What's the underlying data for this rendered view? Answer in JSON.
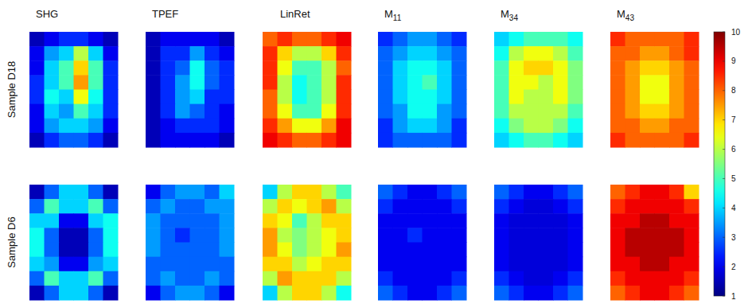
{
  "chart_data": {
    "type": "heatmap",
    "columns": [
      "SHG",
      "TPEF",
      "LinRet",
      "M11",
      "M34",
      "M43"
    ],
    "rows": [
      "Sample D18",
      "Sample D6"
    ],
    "colorbar": {
      "lim": [
        1,
        10
      ],
      "ticks": [
        1,
        2,
        3,
        4,
        5,
        6,
        7,
        8,
        9,
        10
      ]
    },
    "panels": [
      [
        [
          [
            1.5,
            2,
            2.5,
            2.5,
            2,
            1.5
          ],
          [
            2,
            3.5,
            4,
            6,
            4,
            2
          ],
          [
            2,
            4,
            5,
            7,
            5,
            2.5
          ],
          [
            2.5,
            4,
            5,
            7.5,
            5,
            2.5
          ],
          [
            2.5,
            4.5,
            4,
            6.5,
            4.5,
            2.5
          ],
          [
            2,
            4,
            3.5,
            5,
            4,
            2.5
          ],
          [
            2,
            3.5,
            4,
            4,
            3.5,
            2
          ],
          [
            1.5,
            2.5,
            3,
            3,
            2.5,
            1.5
          ]
        ],
        [
          [
            1.5,
            2,
            2,
            2,
            2,
            1.5
          ],
          [
            1.5,
            2.5,
            2.5,
            3.5,
            2.5,
            2
          ],
          [
            1.5,
            2.5,
            3,
            4.5,
            3,
            2.5
          ],
          [
            1.5,
            2.5,
            3.5,
            4.5,
            3,
            2.5
          ],
          [
            1.5,
            2.5,
            3.5,
            4,
            2.5,
            2.5
          ],
          [
            1.5,
            2.5,
            3.5,
            3,
            2.5,
            2
          ],
          [
            1.5,
            2,
            2.5,
            2.5,
            2.5,
            2
          ],
          [
            1.5,
            2,
            2,
            2,
            2,
            1.5
          ]
        ],
        [
          [
            8,
            8.5,
            8,
            8,
            8.5,
            9
          ],
          [
            8.5,
            7,
            6,
            6,
            7,
            8.5
          ],
          [
            8.5,
            6.5,
            5,
            5,
            6,
            8
          ],
          [
            8.5,
            6,
            4.5,
            5,
            6,
            8.5
          ],
          [
            8,
            6,
            4.5,
            5,
            6,
            8.5
          ],
          [
            8,
            6.5,
            5,
            5,
            6.5,
            8.5
          ],
          [
            8.5,
            7.5,
            6.5,
            6.5,
            7.5,
            9
          ],
          [
            9,
            8.5,
            8,
            8,
            8.5,
            9
          ]
        ],
        [
          [
            2.5,
            3,
            3.5,
            3.5,
            3,
            2.5
          ],
          [
            3,
            3.5,
            4,
            4,
            3.5,
            3
          ],
          [
            3,
            4,
            4.5,
            4.5,
            4,
            3
          ],
          [
            3,
            4,
            4.5,
            5,
            4,
            3
          ],
          [
            3,
            4,
            4.5,
            4.5,
            4,
            3
          ],
          [
            3,
            3.5,
            4.5,
            4.5,
            3.5,
            3
          ],
          [
            2.5,
            3.5,
            4,
            4,
            3.5,
            2.5
          ],
          [
            2.5,
            3,
            3,
            3,
            3,
            2.5
          ]
        ],
        [
          [
            4,
            4.5,
            5,
            5,
            5,
            4.5
          ],
          [
            4.5,
            6,
            6.5,
            6.5,
            6,
            5
          ],
          [
            5,
            6.5,
            7,
            7,
            6.5,
            5.5
          ],
          [
            5,
            6.5,
            6.5,
            6,
            6.5,
            5.5
          ],
          [
            5,
            6.5,
            6,
            6,
            6.5,
            5.5
          ],
          [
            5,
            6,
            6,
            6,
            6,
            5
          ],
          [
            4.5,
            5.5,
            6,
            6,
            5.5,
            4.5
          ],
          [
            4,
            4.5,
            5,
            5,
            4.5,
            4
          ]
        ],
        [
          [
            8.5,
            8,
            8,
            8,
            8,
            8.5
          ],
          [
            8,
            8,
            7.5,
            7.5,
            8,
            8.5
          ],
          [
            8,
            7.5,
            7,
            7,
            7.5,
            8
          ],
          [
            8,
            7.5,
            6.5,
            6.5,
            7.5,
            8
          ],
          [
            8,
            7.5,
            6.5,
            6.5,
            7.5,
            8
          ],
          [
            8,
            7.5,
            7,
            7,
            7.5,
            8
          ],
          [
            8,
            8,
            7.5,
            7.5,
            8,
            8
          ],
          [
            8.5,
            8,
            8,
            8,
            8,
            8.5
          ]
        ]
      ],
      [
        [
          [
            1.5,
            3,
            4,
            4,
            3,
            1.5
          ],
          [
            3,
            5,
            4,
            4,
            5,
            3
          ],
          [
            4,
            4,
            2,
            2,
            4,
            4.5
          ],
          [
            4.5,
            3,
            1.5,
            1.5,
            3,
            4.5
          ],
          [
            4.5,
            3,
            1.5,
            1.5,
            3,
            4.5
          ],
          [
            4,
            3.5,
            2,
            2,
            3.5,
            4
          ],
          [
            3,
            5,
            4,
            4,
            5,
            3
          ],
          [
            1.5,
            3,
            4,
            4,
            3,
            1.5
          ]
        ],
        [
          [
            2,
            3,
            3.5,
            3.5,
            3,
            4
          ],
          [
            3,
            3.5,
            3,
            3,
            3.5,
            3.5
          ],
          [
            3.5,
            3,
            3,
            3,
            3,
            3.5
          ],
          [
            3.5,
            3,
            2.5,
            3,
            3,
            3.5
          ],
          [
            3.5,
            3,
            3,
            3,
            3,
            3.5
          ],
          [
            3,
            3,
            3,
            3,
            3,
            3
          ],
          [
            3,
            3.5,
            3,
            3,
            3.5,
            3
          ],
          [
            2,
            3,
            3.5,
            3.5,
            3,
            2
          ]
        ],
        [
          [
            4,
            6,
            7,
            7,
            6,
            5
          ],
          [
            6,
            7,
            6.5,
            7,
            7.5,
            6
          ],
          [
            7,
            6.5,
            5,
            6,
            7,
            7
          ],
          [
            7.5,
            6,
            5.5,
            6,
            6.5,
            7
          ],
          [
            7.5,
            6.5,
            5.5,
            6,
            6.5,
            7.5
          ],
          [
            7,
            7,
            6,
            6.5,
            7,
            7
          ],
          [
            6,
            7.5,
            7,
            7,
            7,
            6
          ],
          [
            4,
            6,
            7,
            7,
            6,
            4.5
          ]
        ],
        [
          [
            3,
            2.5,
            2,
            2,
            2.5,
            3
          ],
          [
            2.5,
            2,
            2,
            2,
            2,
            2.5
          ],
          [
            2,
            2,
            2,
            2,
            2,
            2
          ],
          [
            2,
            2,
            2.5,
            2,
            2,
            2
          ],
          [
            2,
            2,
            2,
            2,
            2,
            2
          ],
          [
            2,
            2,
            2,
            2,
            2,
            2
          ],
          [
            2.5,
            2,
            2,
            2,
            2,
            2.5
          ],
          [
            3,
            2.5,
            2,
            2,
            2.5,
            3
          ]
        ],
        [
          [
            3,
            2.5,
            2,
            2,
            2.5,
            3
          ],
          [
            2.5,
            2,
            1.8,
            1.8,
            2,
            2.5
          ],
          [
            2,
            1.8,
            1.8,
            1.8,
            1.8,
            2
          ],
          [
            2,
            1.8,
            1.8,
            1.8,
            1.8,
            2
          ],
          [
            2,
            1.8,
            1.8,
            1.8,
            1.8,
            2
          ],
          [
            2,
            1.8,
            1.8,
            1.8,
            1.8,
            2
          ],
          [
            2.5,
            2,
            1.8,
            1.8,
            2,
            2.5
          ],
          [
            3,
            2.5,
            2,
            2,
            2.5,
            3
          ]
        ],
        [
          [
            8,
            8.5,
            9,
            9,
            8.5,
            7
          ],
          [
            8.5,
            9,
            9,
            9,
            9,
            8.5
          ],
          [
            9,
            9,
            9.5,
            9.5,
            9,
            9
          ],
          [
            9,
            9.5,
            9.5,
            9.5,
            9.5,
            9
          ],
          [
            9,
            9.5,
            9.5,
            9.5,
            9.5,
            9
          ],
          [
            9,
            9,
            9.5,
            9.5,
            9,
            9
          ],
          [
            8.5,
            9,
            9,
            9,
            9,
            8.5
          ],
          [
            8,
            8.5,
            9,
            9,
            8.5,
            8
          ]
        ]
      ]
    ]
  }
}
